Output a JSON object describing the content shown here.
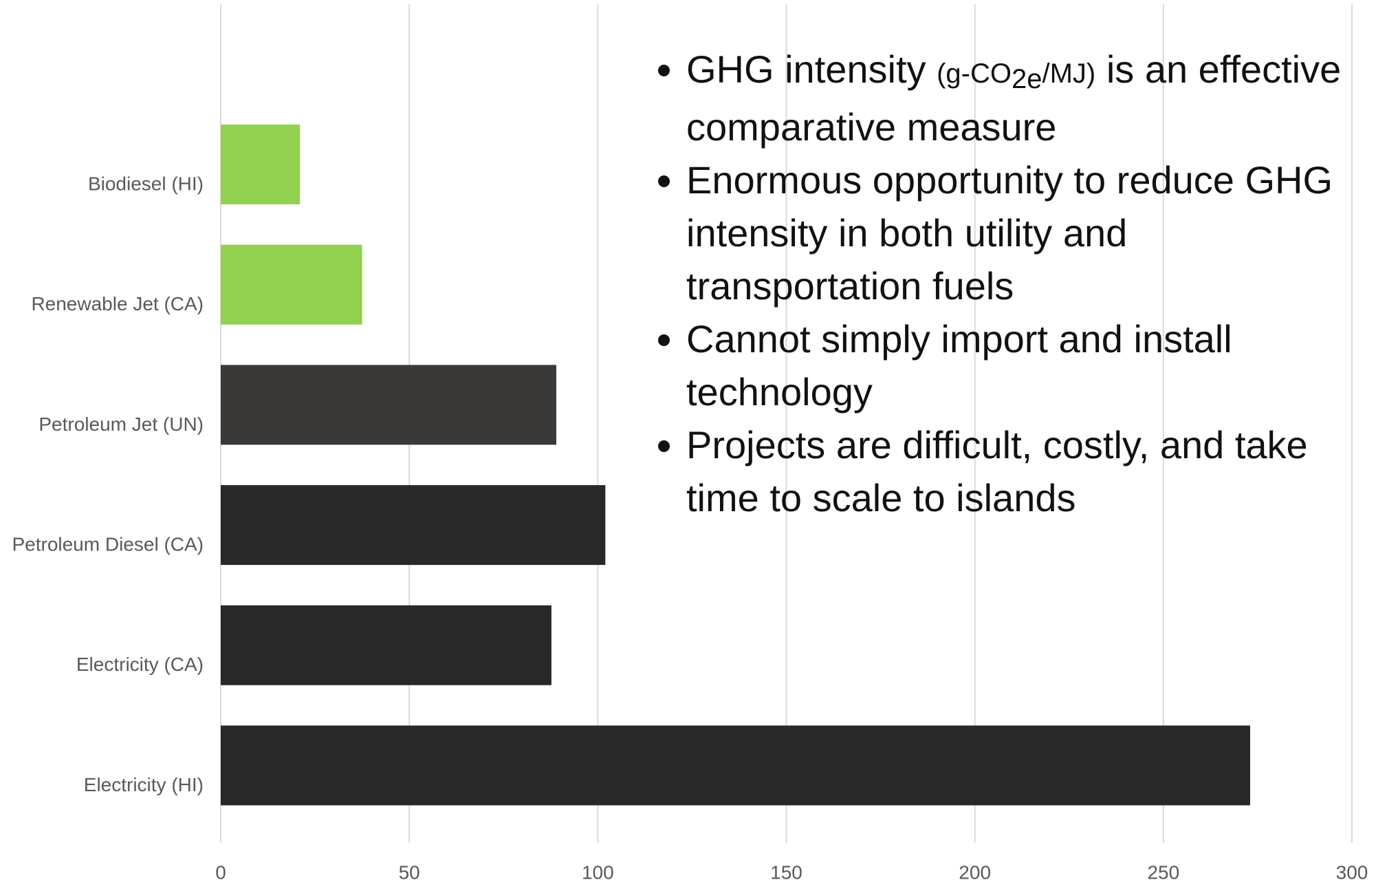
{
  "chart_data": {
    "type": "bar",
    "orientation": "horizontal",
    "categories": [
      "Biodiesel (HI)",
      "Renewable Jet (CA)",
      "Petroleum Jet (UN)",
      "Petroleum Diesel (CA)",
      "Electricity (CA)",
      "Electricity (HI)"
    ],
    "values": [
      21,
      37.5,
      89,
      102,
      87.7,
      273
    ],
    "colors": [
      "#92d050",
      "#92d050",
      "#3a3938",
      "#282828",
      "#282828",
      "#282828"
    ],
    "xlim": [
      0,
      300
    ],
    "xticks": [
      0,
      50,
      100,
      150,
      200,
      250,
      300
    ],
    "grid": true
  },
  "bullets": [
    [
      "GHG intensity ",
      "(g-CO",
      "2e",
      "/MJ)",
      " is an effective comparative measure"
    ],
    "Enormous opportunity to reduce GHG intensity in both utility and transportation fuels",
    "Cannot simply import and install technology",
    "Projects are difficult, costly, and take time to scale to islands"
  ]
}
